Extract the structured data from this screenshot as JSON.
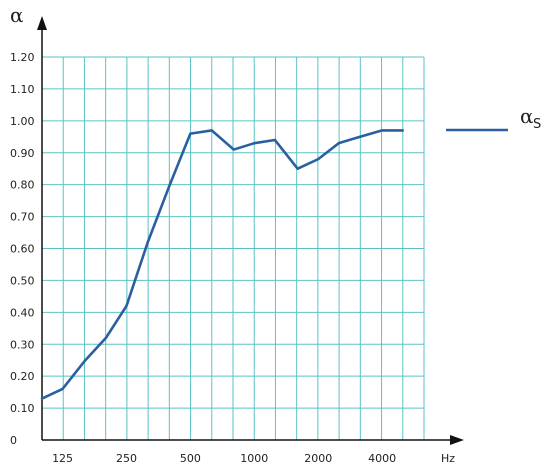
{
  "chart_data": {
    "type": "line",
    "ylabel": "α",
    "xlabel": "Hz",
    "y_ticks": [
      "0",
      "0.10",
      "0.20",
      "0.30",
      "0.40",
      "0.50",
      "0.60",
      "0.70",
      "0.80",
      "0.90",
      "1.00",
      "1.10",
      "1.20"
    ],
    "ylim": [
      0,
      1.2
    ],
    "x_tick_labels": [
      "125",
      "250",
      "500",
      "1000",
      "2000",
      "4000"
    ],
    "x_scale": "log-octave (1/3-octave gridlines)",
    "grid": true,
    "legend_position": "right",
    "series": [
      {
        "name": "α",
        "name_subscript": "S",
        "color": "#2a5fa0",
        "x": [
          100,
          125,
          160,
          200,
          250,
          315,
          400,
          500,
          630,
          800,
          1000,
          1250,
          1600,
          2000,
          2500,
          3150,
          4000,
          5000
        ],
        "values": [
          0.13,
          0.16,
          0.25,
          0.32,
          0.42,
          0.62,
          0.8,
          0.96,
          0.97,
          0.91,
          0.93,
          0.94,
          0.85,
          0.88,
          0.93,
          0.95,
          0.97,
          0.97
        ]
      }
    ],
    "colors": {
      "grid": "#5bc2c4",
      "axis": "#111111",
      "line": "#2a5fa0"
    }
  }
}
